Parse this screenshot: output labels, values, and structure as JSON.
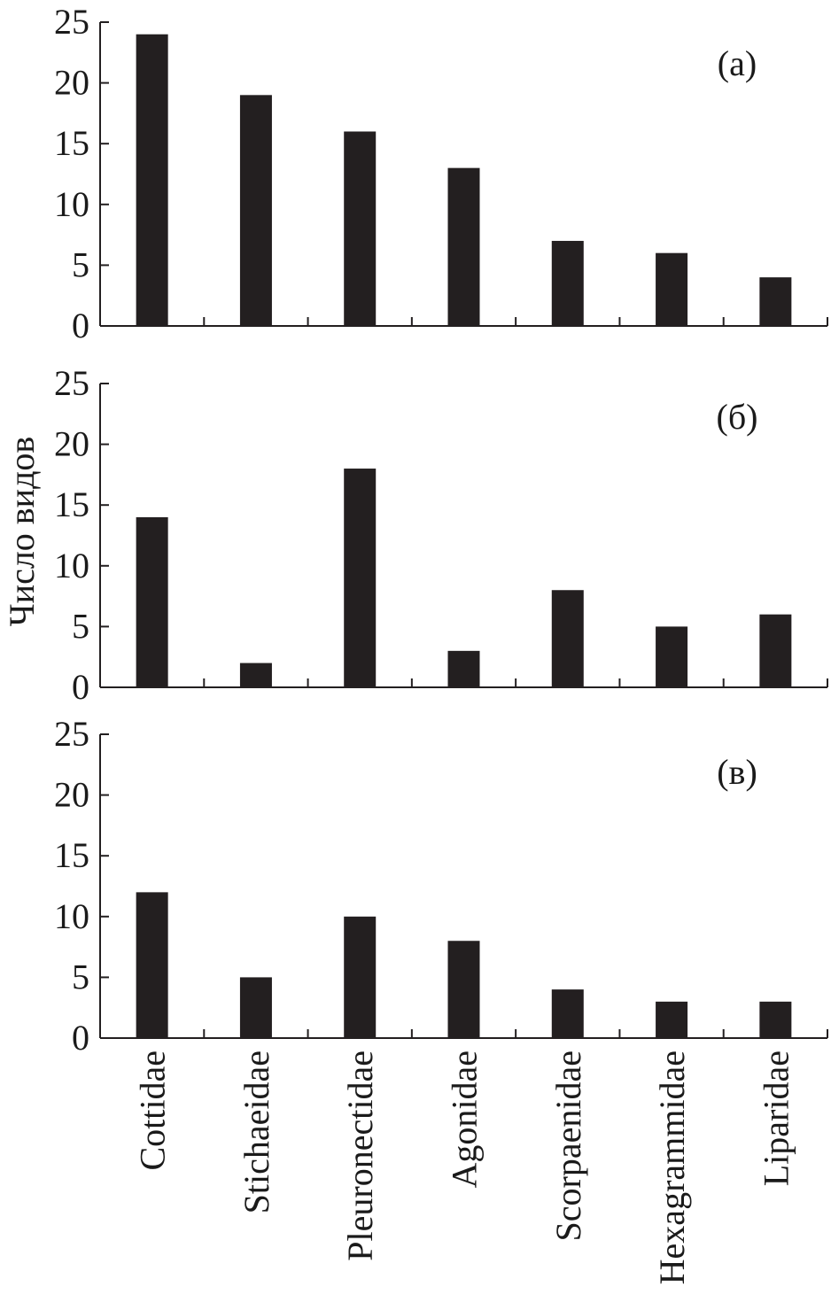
{
  "chart_data": {
    "type": "bar",
    "ylabel": "Число видов",
    "categories": [
      "Cottidae",
      "Stichaeidae",
      "Pleuronectidae",
      "Agonidae",
      "Scorpaenidae",
      "Hexagrammidae",
      "Liparidae"
    ],
    "yticks": [
      "0",
      "5",
      "10",
      "15",
      "20",
      "25"
    ],
    "ylim": [
      0,
      25
    ],
    "grid": false,
    "bar_color": "#231f20",
    "panels": [
      {
        "label": "(а)",
        "values": [
          24,
          19,
          16,
          13,
          7,
          6,
          4
        ]
      },
      {
        "label": "(б)",
        "values": [
          14,
          2,
          18,
          3,
          8,
          5,
          6
        ]
      },
      {
        "label": "(в)",
        "values": [
          12,
          5,
          10,
          8,
          4,
          3,
          3
        ]
      }
    ]
  }
}
